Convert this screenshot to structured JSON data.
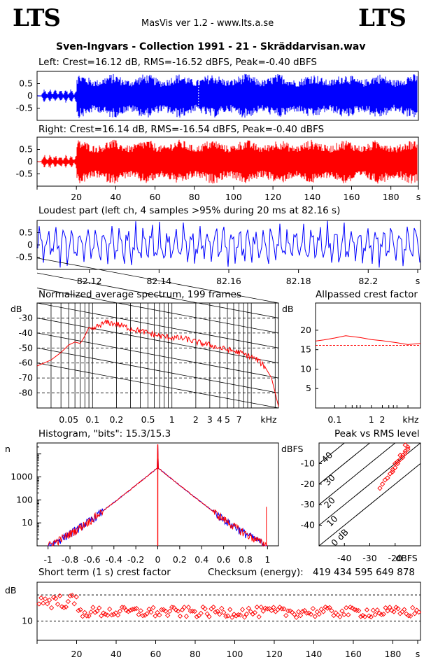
{
  "header": {
    "logo_left": "LTS",
    "logo_right": "LTS",
    "app_version": "MasVis ver 1.2 - www.lts.a.se",
    "file_title": "Sven-Ingvars - Collection 1991 - 21 - Skräddarvisan.wav"
  },
  "colors": {
    "left": "#0000ff",
    "right": "#ff0000",
    "axis": "#000000"
  },
  "chart_data": [
    {
      "type": "line",
      "id": "left_waveform",
      "title": "Left: Crest=16.12 dB, RMS=-16.52 dBFS, Peak=-0.40 dBFS",
      "yticks": [
        "0.5",
        "0",
        "-0.5"
      ],
      "ylim": [
        -1,
        1
      ],
      "xlim": [
        0,
        194
      ],
      "series": [
        {
          "color": "#0000ff",
          "envelope": "silence 0-3 s, low intro 3-20 s (±0.25), full level 20-194 s (±0.9)"
        }
      ]
    },
    {
      "type": "line",
      "id": "right_waveform",
      "title": "Right: Crest=16.14 dB, RMS=-16.54 dBFS, Peak=-0.40 dBFS",
      "yticks": [
        "0.5",
        "0",
        "-0.5"
      ],
      "ylim": [
        -1,
        1
      ],
      "xlim": [
        0,
        194
      ],
      "xticks": [
        "20",
        "40",
        "60",
        "80",
        "100",
        "120",
        "140",
        "160",
        "180",
        "s"
      ],
      "series": [
        {
          "color": "#ff0000",
          "envelope": "silence 0-3 s, low intro 3-20 s (±0.25), full level 20-194 s (±0.9)"
        }
      ]
    },
    {
      "type": "line",
      "id": "loudest_part",
      "title": "Loudest part (left  ch, 4 samples >95% during 20 ms at 82.16 s)",
      "yticks": [
        "0.5",
        "0",
        "-0.5"
      ],
      "ylim": [
        -1,
        1
      ],
      "xlim": [
        82.105,
        82.215
      ],
      "xticks": [
        "82.12",
        "82.14",
        "82.16",
        "82.18",
        "82.2",
        "s"
      ],
      "series": [
        {
          "color": "#0000ff"
        }
      ]
    },
    {
      "type": "line",
      "id": "avg_spectrum",
      "title": "Normalized average spectrum, 199 frames",
      "ylabel": "dB",
      "yticks": [
        "-30",
        "-40",
        "-50",
        "-60",
        "-70",
        "-80"
      ],
      "ylim": [
        -90,
        -20
      ],
      "xscale": "log",
      "xticks": [
        "0.05",
        "0.1",
        "0.2",
        "0.5",
        "1",
        "2",
        "3",
        "4",
        "5",
        "7",
        "kHz"
      ],
      "xlim_khz": [
        0.02,
        22
      ],
      "series": [
        {
          "color": "#ff0000",
          "x_khz": [
            0.02,
            0.03,
            0.04,
            0.05,
            0.06,
            0.07,
            0.08,
            0.09,
            0.1,
            0.12,
            0.15,
            0.2,
            0.3,
            0.5,
            0.7,
            1,
            1.5,
            2,
            3,
            4,
            5,
            7,
            10,
            12,
            15,
            18,
            22
          ],
          "y": [
            -62,
            -58,
            -53,
            -48,
            -46,
            -47,
            -42,
            -36,
            -38,
            -35,
            -33,
            -34,
            -37,
            -40,
            -42,
            -43,
            -44,
            -46,
            -48,
            -50,
            -51,
            -53,
            -56,
            -58,
            -63,
            -70,
            -89
          ]
        }
      ]
    },
    {
      "type": "line",
      "id": "allpassed_crest",
      "title": "Allpassed crest factor",
      "ylabel": "dB",
      "yticks": [
        "20",
        "15",
        "10",
        "5"
      ],
      "ylim": [
        0,
        27
      ],
      "xscale": "log",
      "xticks": [
        "0.1",
        "1",
        "2",
        "kHz"
      ],
      "xlim_khz": [
        0.03,
        22
      ],
      "reference_level": 16.1,
      "series": [
        {
          "color": "#ff0000",
          "x_khz": [
            0.03,
            0.05,
            0.1,
            0.2,
            0.5,
            1,
            2,
            5,
            10,
            22
          ],
          "y": [
            17.2,
            17.5,
            18.0,
            18.6,
            18.1,
            17.6,
            17.3,
            16.8,
            16.3,
            16.6
          ]
        }
      ]
    },
    {
      "type": "line",
      "id": "histogram",
      "title": "Histogram, \"bits\": 15.3/15.3",
      "ylabel": "n",
      "yscale": "log",
      "yticks": [
        "1000",
        "100",
        "10"
      ],
      "ylim": [
        1,
        30000
      ],
      "xlim": [
        -1.1,
        1.1
      ],
      "xticks": [
        "-1",
        "-0.8",
        "-0.6",
        "-0.4",
        "-0.2",
        "0",
        "0.2",
        "0.4",
        "0.6",
        "0.8",
        "1"
      ],
      "series": [
        {
          "name": "left",
          "color": "#0000ff"
        },
        {
          "name": "right",
          "color": "#ff0000",
          "x": [
            -1.0,
            -0.8,
            -0.6,
            -0.4,
            -0.2,
            0,
            0.2,
            0.4,
            0.6,
            0.8,
            1.0
          ],
          "y": [
            1,
            3,
            12,
            70,
            500,
            2500,
            500,
            70,
            12,
            3,
            1
          ]
        }
      ]
    },
    {
      "type": "scatter",
      "id": "peak_vs_rms",
      "title": "Peak vs RMS level",
      "ylabel": "dBFS",
      "xlabel": "dBFS",
      "yticks": [
        "-10",
        "-20",
        "-30",
        "-40"
      ],
      "xticks": [
        "-40",
        "-30",
        "-20"
      ],
      "xlim": [
        -50,
        -10
      ],
      "ylim": [
        -50,
        0
      ],
      "diagonal_labels": [
        "40",
        "30",
        "20",
        "10",
        "0 dB"
      ],
      "series": [
        {
          "color": "#ff0000",
          "marker": "diamond",
          "x": [
            -26,
            -25,
            -24,
            -23,
            -22,
            -21,
            -20,
            -19,
            -18,
            -17,
            -16,
            -15,
            -20,
            -19,
            -17,
            -16,
            -18,
            -21,
            -15,
            -16
          ],
          "y": [
            -22,
            -20,
            -18,
            -17,
            -15,
            -13,
            -12,
            -10,
            -8,
            -6,
            -5,
            -3,
            -10,
            -9,
            -7,
            -4,
            -6,
            -14,
            -2,
            -1
          ]
        }
      ]
    },
    {
      "type": "scatter",
      "id": "short_term_crest",
      "title": "Short term (1 s) crest factor",
      "ylabel": "dB",
      "yticks": [
        "10"
      ],
      "yscale": "log",
      "ylim": [
        6,
        28
      ],
      "xlim": [
        0,
        194
      ],
      "xticks": [
        "20",
        "40",
        "60",
        "80",
        "100",
        "120",
        "140",
        "160",
        "180",
        "s"
      ],
      "reference_lines": [
        10,
        20
      ],
      "series": [
        {
          "color": "#ff0000",
          "marker": "diamond"
        }
      ]
    }
  ],
  "checksum": {
    "label": "Checksum (energy):",
    "value": "419 434 595 649 878"
  }
}
